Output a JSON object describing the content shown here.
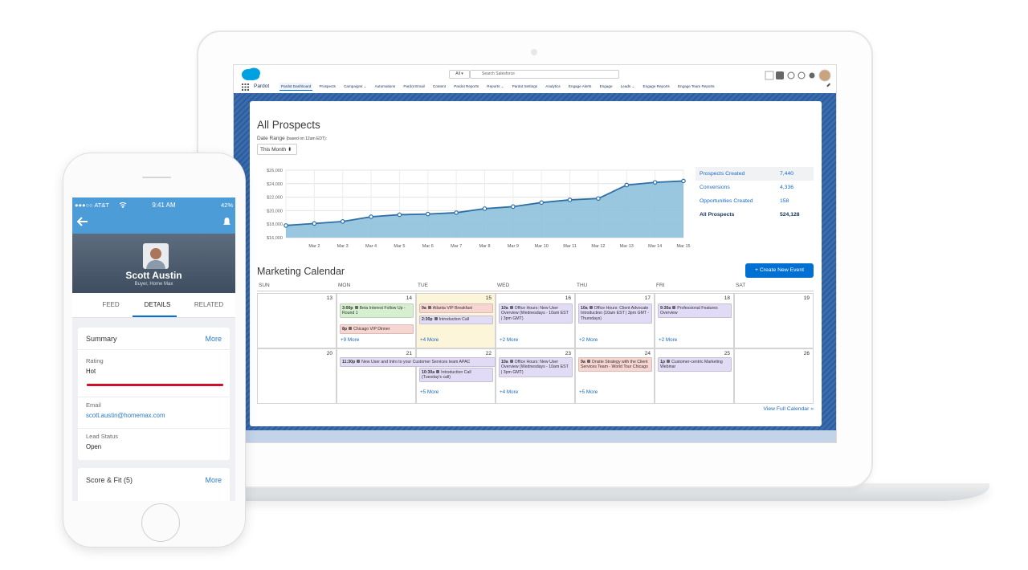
{
  "app": {
    "brand": "Pardot",
    "search_scope": "All ▾",
    "search_placeholder": "Search Salesforce",
    "nav": [
      "Pardot Dashboard",
      "Prospects",
      "Campaigns ⌄",
      "Automations",
      "Pardot Email",
      "Content",
      "Pardot Reports",
      "Reports ⌄",
      "Pardot Settings",
      "Analytics",
      "Engage Alerts",
      "Engage",
      "Leads ⌄",
      "Engage Reports",
      "Engage Team Reports"
    ]
  },
  "prospects": {
    "title": "All Prospects",
    "date_range_label": "Date Range",
    "date_range_note": "(based on 12am EDT):",
    "date_select": "This Month ⬍"
  },
  "chart_data": {
    "type": "area",
    "categories": [
      null,
      "Mar 2",
      "Mar 3",
      "Mar 4",
      "Mar 5",
      "Mar 6",
      "Mar 7",
      "Mar 8",
      "Mar 9",
      "Mar 10",
      "Mar 11",
      "Mar 12",
      "Mar 13",
      "Mar 14",
      "Mar 15"
    ],
    "values": [
      17800,
      18100,
      18400,
      19100,
      19400,
      19500,
      19700,
      20300,
      20600,
      21200,
      21600,
      21800,
      23800,
      24200,
      24400
    ],
    "color": "#8ec1dc",
    "line_color": "#2d6fa6",
    "ylim": [
      16000,
      26000
    ],
    "yticks": [
      {
        "value": 16000,
        "label": "$16,000"
      },
      {
        "value": 18000,
        "label": "$18,000"
      },
      {
        "value": 20000,
        "label": "$20,000"
      },
      {
        "value": 22000,
        "label": "$22,000"
      },
      {
        "value": 24000,
        "label": "$24,000"
      },
      {
        "value": 26000,
        "label": "$26,000"
      }
    ],
    "grid": true
  },
  "stats": [
    {
      "label": "Prospects Created",
      "value": "7,440"
    },
    {
      "label": "Conversions",
      "value": "4,336"
    },
    {
      "label": "Opportunities Created",
      "value": "158"
    },
    {
      "label": "All Prospects",
      "value": "524,128"
    }
  ],
  "calendar": {
    "title": "Marketing Calendar",
    "button": "+ Create New Event",
    "days": [
      "SUN",
      "MON",
      "TUE",
      "WED",
      "THU",
      "FRI",
      "SAT"
    ],
    "weeks": [
      {
        "cells": [
          {
            "date": 13,
            "events": []
          },
          {
            "date": 14,
            "events": [
              {
                "time": "3:00p",
                "title": "Beta Interest Follow Up - Round 1",
                "color": "#d5efcf"
              },
              {
                "time": "8p",
                "title": "Chicago VIP Dinner",
                "color": "#f7d5d1"
              }
            ],
            "more": "+9 More"
          },
          {
            "date": 15,
            "events": [
              {
                "time": "9a",
                "title": "Atlanta VIP Breakfast",
                "color": "#f7d5d1"
              },
              {
                "time": "2:30p",
                "title": "Introduction Call",
                "color": "#e2dbf5"
              }
            ],
            "more": "+4 More"
          },
          {
            "date": 16,
            "events": [
              {
                "time": "10a",
                "title": "Office Hours: New User Overview (Wednesdays - 10am EST | 3pm GMT)",
                "color": "#e2dbf5"
              }
            ],
            "more": "+2 More"
          },
          {
            "date": 17,
            "events": [
              {
                "time": "10a",
                "title": "Office Hours: Client Advocate Introduction (10am EST | 3pm GMT - Thursdays)",
                "color": "#e2dbf5"
              }
            ],
            "more": "+2 More"
          },
          {
            "date": 18,
            "events": [
              {
                "time": "9:30a",
                "title": "Professional Features Overview",
                "color": "#e2dbf5"
              }
            ],
            "more": "+2 More"
          },
          {
            "date": 19,
            "events": []
          }
        ]
      },
      {
        "cells": [
          {
            "date": 20,
            "events": []
          },
          {
            "date": 21,
            "events": [
              {
                "time": "11:30p",
                "title": "New User and Intro to your Customer Services team APAC",
                "color": "#e2dbf5"
              }
            ]
          },
          {
            "date": 22,
            "events": [
              {
                "time": "10:30a",
                "title": "Introduction Call (Tuesday's call)",
                "color": "#e2dbf5"
              }
            ],
            "more": "+5 More"
          },
          {
            "date": 23,
            "events": [
              {
                "time": "10a",
                "title": "Office Hours: New User Overview (Wednesdays - 10am EST | 3pm GMT)",
                "color": "#e2dbf5"
              }
            ],
            "more": "+4 More"
          },
          {
            "date": 24,
            "events": [
              {
                "time": "9a",
                "title": "Onsite Strategy with the Client Services Team - World Tour Chicago",
                "color": "#f7d5d1"
              }
            ],
            "more": "+5 More"
          },
          {
            "date": 25,
            "events": [
              {
                "time": "1p",
                "title": "Customer-centric Marketing Webinar",
                "color": "#e2dbf5"
              }
            ]
          },
          {
            "date": 26,
            "events": []
          }
        ]
      }
    ],
    "view_all": "View Full Calendar »"
  },
  "phone": {
    "carrier": "●●●○○ AT&T",
    "time": "9:41 AM",
    "battery": "42%",
    "name": "Scott Austin",
    "role": "Buyer, Home Max",
    "tabs": [
      "FEED",
      "DETAILS",
      "RELATED"
    ],
    "summary": {
      "title": "Summary",
      "more": "More"
    },
    "fields": [
      {
        "label": "Rating",
        "value": "Hot"
      },
      {
        "label": "Email",
        "value": "scott.austin@homemax.com"
      },
      {
        "label": "Lead Status",
        "value": "Open"
      }
    ],
    "score": {
      "title": "Score & Fit (5)",
      "more": "More"
    }
  }
}
